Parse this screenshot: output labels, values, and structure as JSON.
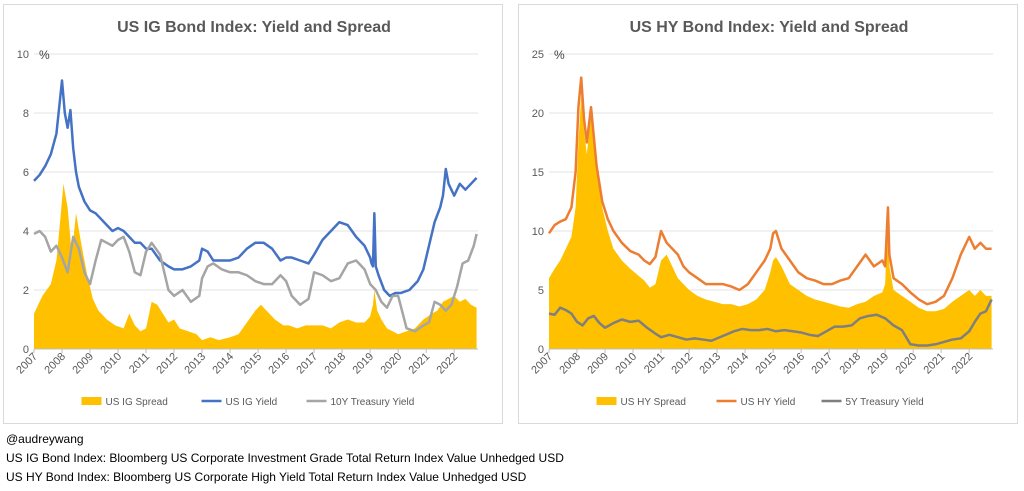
{
  "footer": {
    "handle": "@audreywang",
    "note_ig": "US IG Bond Index: Bloomberg US Corporate Investment Grade Total Return Index Value Unhedged USD",
    "note_hy": "US HY Bond Index: Bloomberg US Corporate High Yield Total Return Index Value Unhedged USD"
  },
  "chart_data": [
    {
      "type": "line",
      "title": "US IG Bond Index: Yield and Spread",
      "unit": "%",
      "ylim": [
        0,
        10
      ],
      "yticks": [
        0,
        2,
        4,
        6,
        8,
        10
      ],
      "xlim": [
        2007,
        2022.85
      ],
      "xticks": [
        "2007",
        "2008",
        "2009",
        "2010",
        "2011",
        "2012",
        "2013",
        "2014",
        "2015",
        "2016",
        "2017",
        "2018",
        "2019",
        "2020",
        "2021",
        "2022"
      ],
      "grid": true,
      "legend_position": "bottom",
      "series": [
        {
          "name": "US IG Spread",
          "kind": "area",
          "color": "#FFC000",
          "x": [
            2007.0,
            2007.3,
            2007.6,
            2007.8,
            2007.95,
            2008.05,
            2008.2,
            2008.35,
            2008.5,
            2008.7,
            2008.9,
            2009.1,
            2009.3,
            2009.6,
            2009.9,
            2010.2,
            2010.4,
            2010.6,
            2010.8,
            2011.0,
            2011.2,
            2011.4,
            2011.6,
            2011.8,
            2012.0,
            2012.2,
            2012.5,
            2012.8,
            2013.0,
            2013.3,
            2013.6,
            2014.0,
            2014.3,
            2014.6,
            2014.9,
            2015.1,
            2015.3,
            2015.6,
            2015.9,
            2016.1,
            2016.4,
            2016.7,
            2017.0,
            2017.3,
            2017.6,
            2017.9,
            2018.2,
            2018.5,
            2018.8,
            2019.0,
            2019.1,
            2019.15,
            2019.25,
            2019.4,
            2019.6,
            2019.8,
            2020.0,
            2020.3,
            2020.6,
            2020.9,
            2021.2,
            2021.4,
            2021.6,
            2021.8,
            2022.0,
            2022.2,
            2022.4,
            2022.6,
            2022.8
          ],
          "y": [
            1.2,
            1.8,
            2.2,
            3.0,
            4.5,
            5.6,
            4.8,
            3.2,
            4.6,
            3.5,
            2.5,
            1.7,
            1.3,
            1.0,
            0.8,
            0.7,
            1.2,
            0.8,
            0.6,
            0.7,
            1.6,
            1.5,
            1.2,
            0.9,
            1.0,
            0.7,
            0.6,
            0.5,
            0.3,
            0.4,
            0.3,
            0.4,
            0.5,
            0.9,
            1.3,
            1.5,
            1.3,
            1.0,
            0.8,
            0.8,
            0.7,
            0.8,
            0.8,
            0.8,
            0.7,
            0.9,
            1.0,
            0.9,
            0.9,
            1.1,
            1.5,
            2.0,
            1.3,
            1.0,
            0.7,
            0.6,
            0.5,
            0.6,
            0.7,
            1.0,
            1.2,
            1.3,
            1.6,
            1.7,
            1.8,
            1.6,
            1.7,
            1.5,
            1.4
          ]
        },
        {
          "name": "US IG Yield",
          "kind": "line",
          "color": "#4472C4",
          "x": [
            2007.0,
            2007.2,
            2007.4,
            2007.6,
            2007.8,
            2007.9,
            2008.0,
            2008.1,
            2008.2,
            2008.3,
            2008.4,
            2008.5,
            2008.6,
            2008.8,
            2009.0,
            2009.2,
            2009.4,
            2009.6,
            2009.8,
            2010.0,
            2010.2,
            2010.4,
            2010.6,
            2010.8,
            2011.0,
            2011.2,
            2011.5,
            2011.8,
            2012.0,
            2012.3,
            2012.6,
            2012.9,
            2013.0,
            2013.2,
            2013.4,
            2013.7,
            2014.0,
            2014.3,
            2014.6,
            2014.9,
            2015.2,
            2015.5,
            2015.8,
            2016.0,
            2016.2,
            2016.5,
            2016.8,
            2017.0,
            2017.3,
            2017.6,
            2017.9,
            2018.2,
            2018.5,
            2018.8,
            2019.0,
            2019.05,
            2019.1,
            2019.15,
            2019.2,
            2019.3,
            2019.5,
            2019.7,
            2019.9,
            2020.1,
            2020.4,
            2020.7,
            2020.9,
            2021.1,
            2021.3,
            2021.5,
            2021.6,
            2021.7,
            2021.8,
            2022.0,
            2022.2,
            2022.4,
            2022.6,
            2022.8
          ],
          "y": [
            5.7,
            5.9,
            6.2,
            6.6,
            7.3,
            8.2,
            9.1,
            8.0,
            7.5,
            8.1,
            6.8,
            6.0,
            5.5,
            5.0,
            4.7,
            4.6,
            4.4,
            4.2,
            4.0,
            4.1,
            4.0,
            3.8,
            3.6,
            3.6,
            3.4,
            3.4,
            3.0,
            2.8,
            2.7,
            2.7,
            2.8,
            3.0,
            3.4,
            3.3,
            3.0,
            3.0,
            3.0,
            3.1,
            3.4,
            3.6,
            3.6,
            3.4,
            3.0,
            3.1,
            3.1,
            3.0,
            2.9,
            3.2,
            3.7,
            4.0,
            4.3,
            4.2,
            3.8,
            3.5,
            3.1,
            2.9,
            2.8,
            4.6,
            2.8,
            2.5,
            2.0,
            1.8,
            1.9,
            1.9,
            2.0,
            2.3,
            2.7,
            3.5,
            4.3,
            4.8,
            5.2,
            6.1,
            5.6,
            5.2,
            5.6,
            5.4,
            5.6,
            5.8
          ]
        },
        {
          "name": "10Y Treasury Yield",
          "kind": "line",
          "color": "#A5A5A5",
          "x": [
            2007.0,
            2007.2,
            2007.4,
            2007.6,
            2007.8,
            2008.0,
            2008.2,
            2008.4,
            2008.6,
            2008.8,
            2009.0,
            2009.2,
            2009.4,
            2009.6,
            2009.8,
            2010.0,
            2010.2,
            2010.4,
            2010.6,
            2010.8,
            2011.0,
            2011.2,
            2011.5,
            2011.8,
            2012.0,
            2012.3,
            2012.6,
            2012.9,
            2013.0,
            2013.2,
            2013.4,
            2013.7,
            2014.0,
            2014.3,
            2014.6,
            2014.9,
            2015.2,
            2015.5,
            2015.8,
            2016.0,
            2016.2,
            2016.5,
            2016.8,
            2017.0,
            2017.3,
            2017.6,
            2017.9,
            2018.2,
            2018.5,
            2018.8,
            2019.0,
            2019.2,
            2019.4,
            2019.6,
            2019.8,
            2020.0,
            2020.3,
            2020.6,
            2020.9,
            2021.1,
            2021.3,
            2021.5,
            2021.7,
            2021.9,
            2022.1,
            2022.3,
            2022.5,
            2022.7,
            2022.8
          ],
          "y": [
            3.9,
            4.0,
            3.8,
            3.3,
            3.5,
            3.1,
            2.6,
            3.8,
            3.4,
            2.6,
            2.2,
            3.0,
            3.7,
            3.6,
            3.5,
            3.7,
            3.8,
            3.3,
            2.6,
            2.5,
            3.3,
            3.6,
            3.2,
            2.0,
            1.8,
            2.0,
            1.6,
            1.8,
            2.4,
            2.8,
            2.9,
            2.7,
            2.6,
            2.6,
            2.5,
            2.3,
            2.2,
            2.2,
            2.5,
            2.3,
            1.8,
            1.5,
            1.7,
            2.6,
            2.5,
            2.3,
            2.4,
            2.9,
            3.0,
            2.7,
            2.2,
            2.0,
            1.6,
            1.4,
            1.8,
            1.8,
            0.7,
            0.6,
            0.8,
            0.9,
            1.6,
            1.5,
            1.3,
            1.5,
            2.1,
            2.9,
            3.0,
            3.5,
            3.9
          ]
        }
      ]
    },
    {
      "type": "line",
      "title": "US HY Bond Index: Yield and Spread",
      "unit": "%",
      "ylim": [
        0,
        25
      ],
      "yticks": [
        0,
        5,
        10,
        15,
        20,
        25
      ],
      "xlim": [
        2007,
        2022.85
      ],
      "xticks": [
        "2007",
        "2008",
        "2009",
        "2010",
        "2011",
        "2012",
        "2013",
        "2014",
        "2015",
        "2016",
        "2017",
        "2018",
        "2019",
        "2020",
        "2021",
        "2022"
      ],
      "grid": true,
      "legend_position": "bottom",
      "series": [
        {
          "name": "US HY Spread",
          "kind": "area",
          "color": "#FFC000",
          "x": [
            2007.0,
            2007.2,
            2007.4,
            2007.6,
            2007.8,
            2007.95,
            2008.05,
            2008.15,
            2008.25,
            2008.35,
            2008.5,
            2008.7,
            2008.9,
            2009.1,
            2009.3,
            2009.6,
            2009.9,
            2010.2,
            2010.4,
            2010.6,
            2010.8,
            2011.0,
            2011.2,
            2011.4,
            2011.6,
            2011.8,
            2012.0,
            2012.3,
            2012.6,
            2012.9,
            2013.2,
            2013.5,
            2013.8,
            2014.1,
            2014.4,
            2014.7,
            2014.9,
            2015.0,
            2015.1,
            2015.3,
            2015.6,
            2015.9,
            2016.2,
            2016.5,
            2016.8,
            2017.1,
            2017.4,
            2017.7,
            2018.0,
            2018.3,
            2018.6,
            2018.9,
            2019.0,
            2019.05,
            2019.1,
            2019.15,
            2019.3,
            2019.6,
            2019.9,
            2020.2,
            2020.5,
            2020.8,
            2021.1,
            2021.4,
            2021.7,
            2022.0,
            2022.2,
            2022.4,
            2022.6,
            2022.8
          ],
          "y": [
            6.0,
            6.8,
            7.5,
            8.5,
            9.5,
            12.0,
            17.5,
            21.5,
            18.5,
            16.5,
            20.0,
            16.0,
            12.0,
            10.0,
            8.5,
            7.5,
            6.8,
            6.2,
            5.8,
            5.2,
            5.5,
            7.5,
            8.0,
            7.0,
            6.0,
            5.5,
            5.0,
            4.5,
            4.2,
            4.0,
            3.8,
            3.8,
            3.6,
            3.8,
            4.2,
            5.0,
            6.5,
            7.5,
            7.8,
            7.0,
            5.5,
            5.0,
            4.5,
            4.2,
            4.0,
            3.8,
            3.6,
            3.5,
            3.8,
            4.0,
            4.5,
            4.8,
            5.5,
            8.5,
            11.0,
            7.0,
            5.0,
            4.5,
            4.0,
            3.5,
            3.2,
            3.2,
            3.4,
            4.0,
            4.5,
            5.0,
            4.5,
            5.0,
            4.5,
            4.5
          ]
        },
        {
          "name": "US HY Yield",
          "kind": "line",
          "color": "#ED7D31",
          "x": [
            2007.0,
            2007.2,
            2007.4,
            2007.6,
            2007.8,
            2007.95,
            2008.05,
            2008.15,
            2008.25,
            2008.35,
            2008.5,
            2008.7,
            2008.9,
            2009.1,
            2009.3,
            2009.6,
            2009.9,
            2010.2,
            2010.4,
            2010.6,
            2010.8,
            2011.0,
            2011.2,
            2011.4,
            2011.6,
            2011.8,
            2012.0,
            2012.3,
            2012.6,
            2012.9,
            2013.2,
            2013.5,
            2013.8,
            2014.1,
            2014.4,
            2014.7,
            2014.9,
            2015.0,
            2015.1,
            2015.3,
            2015.6,
            2015.9,
            2016.2,
            2016.5,
            2016.8,
            2017.1,
            2017.4,
            2017.7,
            2018.0,
            2018.3,
            2018.6,
            2018.9,
            2019.0,
            2019.05,
            2019.1,
            2019.15,
            2019.3,
            2019.6,
            2019.9,
            2020.2,
            2020.5,
            2020.8,
            2021.1,
            2021.4,
            2021.7,
            2022.0,
            2022.2,
            2022.4,
            2022.6,
            2022.8
          ],
          "y": [
            9.8,
            10.5,
            10.8,
            11.0,
            12.0,
            15.0,
            20.5,
            23.0,
            19.5,
            17.5,
            20.5,
            15.5,
            12.5,
            11.0,
            10.0,
            9.0,
            8.3,
            8.0,
            7.5,
            7.2,
            7.8,
            10.0,
            9.0,
            8.5,
            8.0,
            7.0,
            6.5,
            6.0,
            5.5,
            5.5,
            5.5,
            5.3,
            5.0,
            5.5,
            6.5,
            7.5,
            8.5,
            9.8,
            10.0,
            8.5,
            7.5,
            6.5,
            6.0,
            5.8,
            5.5,
            5.5,
            5.8,
            6.0,
            7.0,
            8.0,
            7.0,
            7.5,
            7.0,
            9.5,
            12.0,
            8.0,
            6.0,
            5.5,
            4.8,
            4.2,
            3.8,
            4.0,
            4.5,
            6.0,
            8.0,
            9.5,
            8.5,
            9.0,
            8.5,
            8.5
          ]
        },
        {
          "name": "5Y Treasury Yield",
          "kind": "line",
          "color": "#7F7F7F",
          "x": [
            2007.0,
            2007.2,
            2007.4,
            2007.6,
            2007.8,
            2008.0,
            2008.2,
            2008.4,
            2008.6,
            2008.8,
            2009.0,
            2009.3,
            2009.6,
            2009.9,
            2010.2,
            2010.5,
            2010.8,
            2011.0,
            2011.3,
            2011.6,
            2011.9,
            2012.2,
            2012.5,
            2012.8,
            2013.0,
            2013.3,
            2013.6,
            2013.9,
            2014.2,
            2014.5,
            2014.8,
            2015.1,
            2015.4,
            2015.7,
            2016.0,
            2016.3,
            2016.6,
            2016.9,
            2017.2,
            2017.5,
            2017.8,
            2018.1,
            2018.4,
            2018.7,
            2019.0,
            2019.3,
            2019.6,
            2019.9,
            2020.2,
            2020.5,
            2020.8,
            2021.1,
            2021.4,
            2021.7,
            2022.0,
            2022.2,
            2022.4,
            2022.6,
            2022.8
          ],
          "y": [
            3.0,
            2.9,
            3.5,
            3.3,
            3.0,
            2.3,
            2.0,
            2.6,
            2.8,
            2.2,
            1.8,
            2.2,
            2.5,
            2.3,
            2.4,
            1.8,
            1.3,
            1.0,
            1.2,
            1.0,
            0.8,
            0.9,
            0.8,
            0.7,
            0.9,
            1.2,
            1.5,
            1.7,
            1.6,
            1.6,
            1.7,
            1.5,
            1.6,
            1.5,
            1.4,
            1.2,
            1.1,
            1.5,
            1.9,
            1.9,
            2.0,
            2.6,
            2.8,
            2.9,
            2.6,
            2.0,
            1.6,
            0.4,
            0.3,
            0.3,
            0.4,
            0.6,
            0.8,
            0.9,
            1.5,
            2.3,
            3.0,
            3.2,
            4.2
          ]
        }
      ]
    }
  ]
}
